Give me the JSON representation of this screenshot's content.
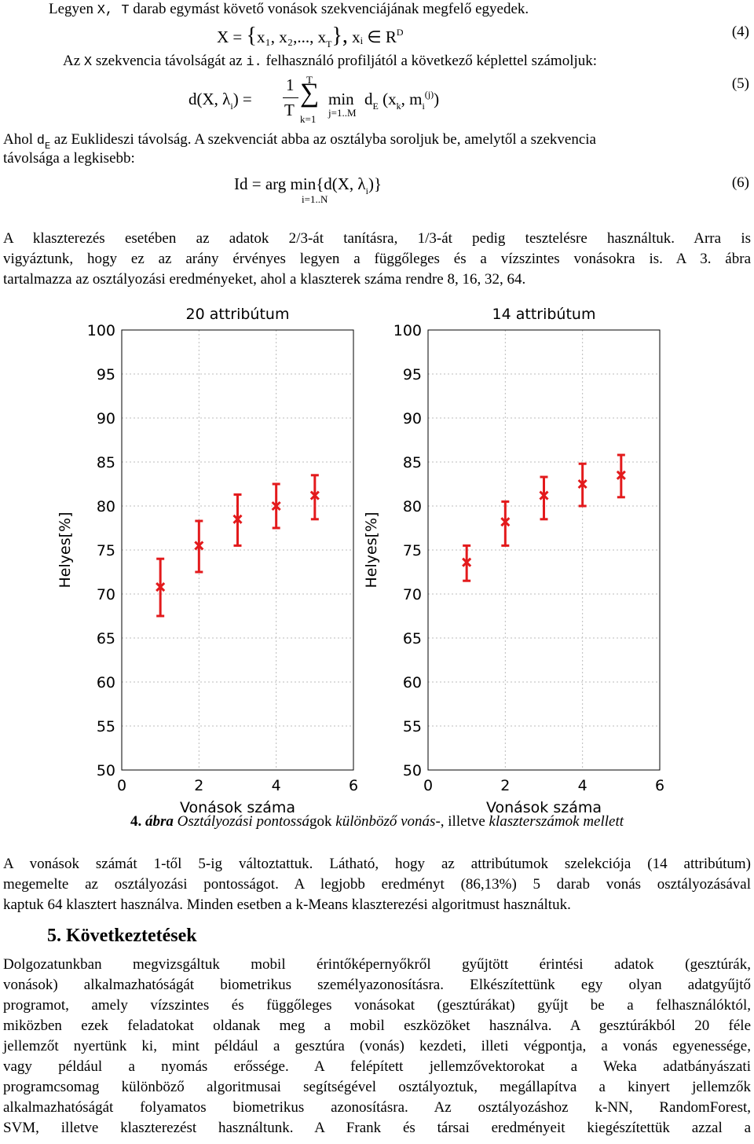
{
  "intro_line": "Legyen X, T darab egymást követő vonások szekvenciájának megfelő egyedek.",
  "intro_parts": {
    "a": "Legyen ",
    "b": "X, T",
    "c": " darab egymást követő vonások szekvenciájának megfelő egyedek."
  },
  "eq4": {
    "lhs": "X = ",
    "brace_open": "{",
    "body": "x₁, x₂,..., x",
    "subT": "T",
    "brace_close": "},",
    "tail": "  xᵢ ∈ R",
    "supD": "D",
    "num": "(4)"
  },
  "line2": {
    "a": "Az ",
    "b": "X",
    "c": " szekvencia távolságát az ",
    "d": "i.",
    "e": " felhasználó profiljától a következő képlettel számoljuk:"
  },
  "eq5": {
    "lhs": "d(X, λ",
    "sub_i": "i",
    "rhs_close": ") =",
    "frac_num": "1",
    "frac_den": "T",
    "sum_top": "T",
    "sum_bot": "k=1",
    "min": "min",
    "min_sub": "j=1..M",
    "dE": "d",
    "dE_sub": "E",
    "args": "(x",
    "x_sub": "k",
    "comma_m": ", m",
    "m_sub": "i",
    "m_sup": "(j)",
    "close": ")",
    "num": "(5)"
  },
  "line3": {
    "a": "Ahol ",
    "b": "d",
    "c": "E",
    "d": " az Euklideszi távolság. A szekvenciát abba az osztályba soroljuk be, amelytől a szekvencia"
  },
  "line4": "távolsága a legkisebb:",
  "eq6": {
    "lhs": "Id = arg min{d(X, λ",
    "sub_i": "i",
    "close": ")}",
    "below": "i=1..N",
    "num": "(6)"
  },
  "para1": [
    "A klaszterezés esetében az adatok 2/3-át tanításra, 1/3-át pedig tesztelésre használtuk. Arra is",
    "vigyáztunk, hogy ez az arány érvényes legyen a függőleges és a vízszintes vonásokra is. A 3. ábra",
    "tartalmazza az osztályozási eredményeket, ahol a klaszterek száma rendre 8, 16, 32, 64."
  ],
  "chart_data": [
    {
      "type": "scatter",
      "title": "20 attribútum",
      "xlabel": "Vonások száma",
      "ylabel": "Helyes[%]",
      "xlim": [
        0,
        6
      ],
      "ylim": [
        50,
        100
      ],
      "xticks": [
        "0",
        "2",
        "4",
        "6"
      ],
      "yticks": [
        "50",
        "55",
        "60",
        "65",
        "70",
        "75",
        "80",
        "85",
        "90",
        "95",
        "100"
      ],
      "grid": true,
      "color": "#e31a1c",
      "x": [
        1,
        2,
        3,
        4,
        5
      ],
      "y": [
        70.8,
        75.5,
        78.5,
        80.0,
        81.2
      ],
      "err_low": [
        67.5,
        72.5,
        75.5,
        77.5,
        78.5
      ],
      "err_high": [
        74.0,
        78.3,
        81.3,
        82.5,
        83.5
      ]
    },
    {
      "type": "scatter",
      "title": "14 attribútum",
      "xlabel": "Vonások száma",
      "ylabel": "Helyes[%]",
      "xlim": [
        0,
        6
      ],
      "ylim": [
        50,
        100
      ],
      "xticks": [
        "0",
        "2",
        "4",
        "6"
      ],
      "yticks": [
        "50",
        "55",
        "60",
        "65",
        "70",
        "75",
        "80",
        "85",
        "90",
        "95",
        "100"
      ],
      "grid": true,
      "color": "#e31a1c",
      "x": [
        1,
        2,
        3,
        4,
        5
      ],
      "y": [
        73.6,
        78.2,
        81.2,
        82.5,
        83.5
      ],
      "err_low": [
        71.5,
        75.5,
        78.5,
        80.0,
        81.0
      ],
      "err_high": [
        75.5,
        80.5,
        83.3,
        84.8,
        85.8
      ]
    }
  ],
  "caption": {
    "num": "4.",
    "abra": "ábra",
    "t1": "Osztályozási pontossá",
    "t2": "gok",
    "t3": "különböző vonás",
    "t4": "-, illetve",
    "t5": "klaszterszámok mellett"
  },
  "para2": [
    "A vonások számát 1-től 5-ig változtattuk. Látható, hogy az attribútumok szelekciója (14 attribútum)",
    "megemelte az osztályozási pontosságot. A legjobb eredményt (86,13%) 5 darab vonás osztályozásával",
    "kaptuk 64 klasztert használva. Minden esetben a k-Means klaszterezési algoritmust használtuk."
  ],
  "section": {
    "num": "5.",
    "title": "Következtetések"
  },
  "para3": [
    "Dolgozatunkban megvizsgáltuk mobil érintőképernyőkről gyűjtött érintési adatok (gesztúrák,",
    "vonások) alkalmazhatóságát biometrikus személyazonosításra. Elkészítettünk egy olyan adatgyűjtő",
    "programot, amely vízszintes és függőleges vonásokat (gesztúrákat) gyűjt be a felhasználóktól,",
    "miközben ezek feladatokat oldanak meg a mobil eszközöket használva. A gesztúrákból 20 féle",
    "jellemzőt nyertünk ki, mint például a gesztúra (vonás) kezdeti, illeti végpontja, a vonás egyenessége,",
    "vagy például a nyomás erőssége. A felépített jellemzővektorokat a Weka adatbányászati",
    "programcsomag különböző algoritmusai segítségével osztályoztuk, megállapítva a kinyert jellemzők",
    "alkalmazhatóságát folyamatos biometrikus azonosításra. Az osztályozáshoz k-NN, RandomForest,",
    "SVM, illetve klaszterezést használtunk. A Frank és társai eredményeit kiegészítettük azzal a"
  ]
}
